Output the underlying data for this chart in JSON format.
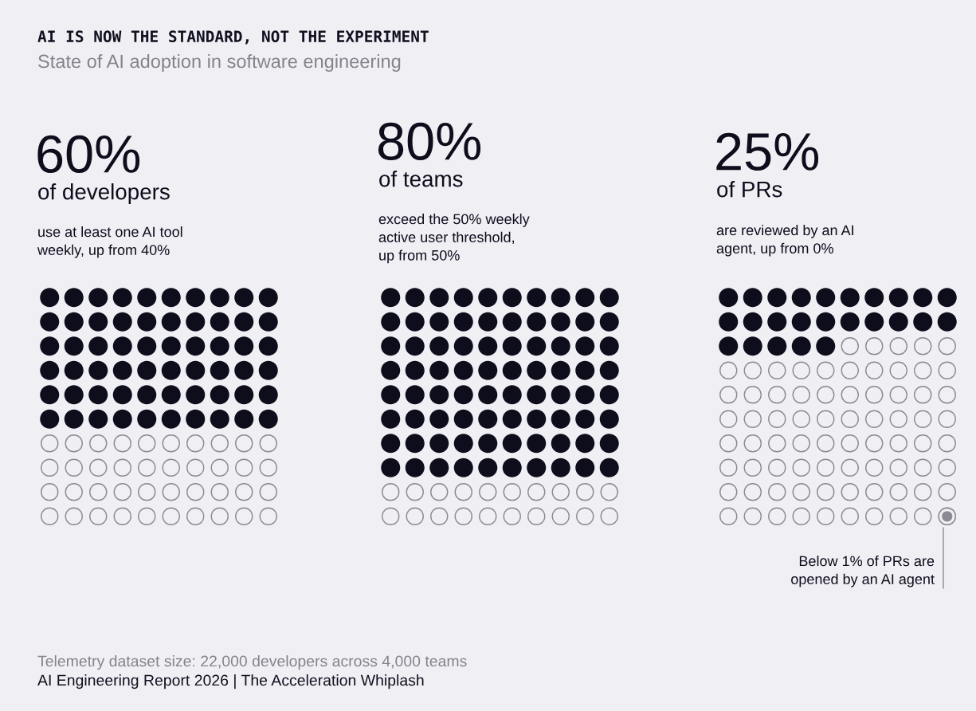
{
  "chart_data": [
    {
      "type": "other",
      "title": "AI IS NOW THE STANDARD, NOT THE EXPERIMENT",
      "subtitle": "State of AI adoption in software engineering",
      "annotations": [
        "Telemetry dataset size: 22,000 developers across 4,000 teams",
        "AI Engineering Report 2026 | The Acceleration Whiplash"
      ]
    },
    {
      "type": "other",
      "subtitle": "of developers",
      "annotations": [
        "use at least one AI tool\nweekly, up from 40%"
      ],
      "series": [
        {
          "color": "#0e0d1c",
          "values": [
            60
          ],
          "value_labels": [
            "60%"
          ]
        }
      ]
    },
    {
      "type": "other",
      "subtitle": "of teams",
      "annotations": [
        "exceed the 50% weekly\nactive user threshold,\nup from 50%"
      ],
      "series": [
        {
          "color": "#0e0d1c",
          "values": [
            80
          ],
          "value_labels": [
            "80%"
          ]
        }
      ]
    },
    {
      "type": "other",
      "subtitle": "of PRs",
      "annotations": [
        "are reviewed by an AI\nagent, up from 0%",
        "Below 1% of PRs are\nopened by an AI agent"
      ],
      "series": [
        {
          "color": "#0e0d1c",
          "values": [
            25
          ],
          "value_labels": [
            "25%"
          ]
        }
      ]
    }
  ]
}
